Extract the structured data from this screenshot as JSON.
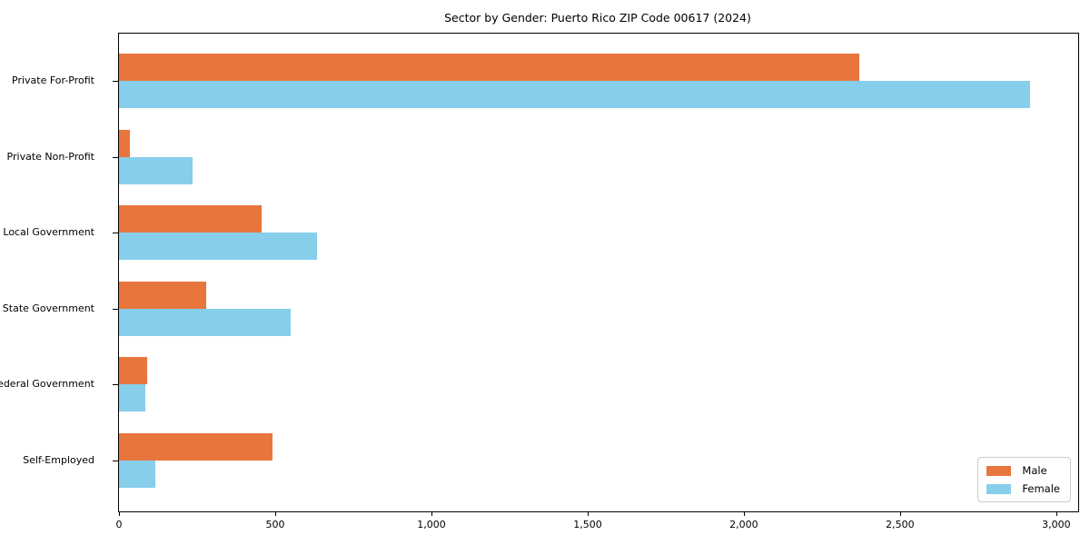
{
  "title": "Sector by Gender: Puerto Rico ZIP Code 00617 (2024)",
  "chart_data": {
    "type": "bar",
    "orientation": "horizontal",
    "title": "Sector by Gender: Puerto Rico ZIP Code 00617 (2024)",
    "xlabel": "",
    "ylabel": "",
    "categories": [
      "Private For-Profit",
      "Private Non-Profit",
      "Local Government",
      "State Government",
      "Federal Government",
      "Self-Employed"
    ],
    "series": [
      {
        "name": "Male",
        "color": "#E8763C",
        "values": [
          2370,
          35,
          455,
          280,
          90,
          490
        ]
      },
      {
        "name": "Female",
        "color": "#87CEEB",
        "values": [
          2915,
          235,
          635,
          550,
          85,
          115
        ]
      }
    ],
    "xlim": [
      0,
      3070
    ],
    "xticks": [
      0,
      500,
      1000,
      1500,
      2000,
      2500,
      3000
    ],
    "xtick_labels": [
      "0",
      "500",
      "1,000",
      "1,500",
      "2,000",
      "2,500",
      "3,000"
    ],
    "grid": false,
    "legend_position": "lower right"
  }
}
